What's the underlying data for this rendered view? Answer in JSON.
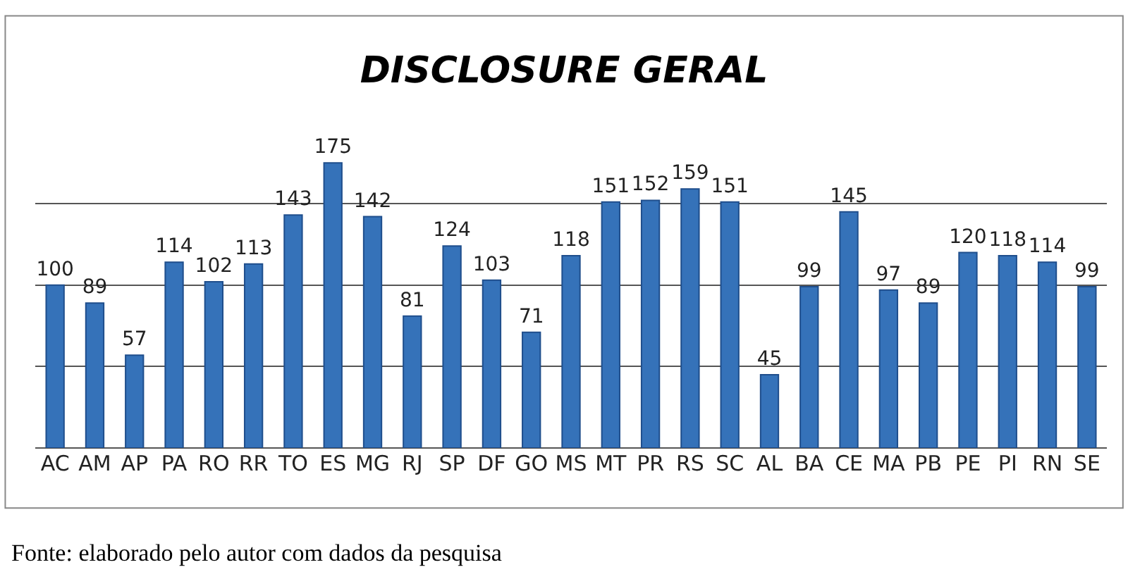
{
  "chart_data": {
    "type": "bar",
    "title": "DISCLOSURE GERAL",
    "categories": [
      "AC",
      "AM",
      "AP",
      "PA",
      "RO",
      "RR",
      "TO",
      "ES",
      "MG",
      "RJ",
      "SP",
      "DF",
      "GO",
      "MS",
      "MT",
      "PR",
      "RS",
      "SC",
      "AL",
      "BA",
      "CE",
      "MA",
      "PB",
      "PE",
      "PI",
      "RN",
      "SE"
    ],
    "values": [
      100,
      89,
      57,
      114,
      102,
      113,
      143,
      175,
      142,
      81,
      124,
      103,
      71,
      118,
      151,
      152,
      159,
      151,
      45,
      99,
      145,
      97,
      89,
      120,
      118,
      114,
      99
    ],
    "color": "#3572b9",
    "grid": "y",
    "tick_labels": "x",
    "data_labels": true,
    "annotations": [
      "Fonte: elaborado pelo autor com dados da pesquisa"
    ]
  }
}
